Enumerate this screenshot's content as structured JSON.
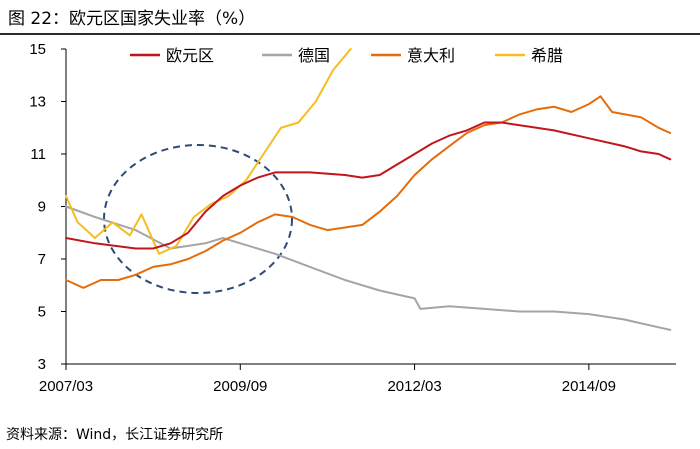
{
  "figure": {
    "title": "图 22：欧元区国家失业率（%）",
    "source": "资料来源：Wind，长江证券研究所"
  },
  "chart_data": {
    "type": "line",
    "title": "图 22：欧元区国家失业率（%）",
    "xlabel": "",
    "ylabel": "",
    "ylim": [
      3,
      15
    ],
    "yticks": [
      3,
      5,
      7,
      9,
      11,
      13,
      15
    ],
    "xrange": [
      "2007/03",
      "2015/12"
    ],
    "xticks": [
      "2007/03",
      "2009/09",
      "2012/03",
      "2014/09"
    ],
    "legend_position": "top",
    "grid": false,
    "colors": {
      "euro_area": "#c0161c",
      "germany": "#a5a5a5",
      "italy": "#e46c0a",
      "greece": "#f5bd1f",
      "ellipse": "#2e4a7a"
    },
    "series": [
      {
        "name": "欧元区",
        "key": "euro_area",
        "points": [
          [
            "2007/03",
            7.8
          ],
          [
            "2007/08",
            7.6
          ],
          [
            "2008/03",
            7.4
          ],
          [
            "2008/06",
            7.4
          ],
          [
            "2008/09",
            7.6
          ],
          [
            "2008/12",
            8.0
          ],
          [
            "2009/03",
            8.8
          ],
          [
            "2009/06",
            9.4
          ],
          [
            "2009/09",
            9.8
          ],
          [
            "2009/12",
            10.1
          ],
          [
            "2010/03",
            10.3
          ],
          [
            "2010/09",
            10.3
          ],
          [
            "2011/03",
            10.2
          ],
          [
            "2011/06",
            10.1
          ],
          [
            "2011/09",
            10.2
          ],
          [
            "2011/12",
            10.6
          ],
          [
            "2012/03",
            11.0
          ],
          [
            "2012/06",
            11.4
          ],
          [
            "2012/09",
            11.7
          ],
          [
            "2012/12",
            11.9
          ],
          [
            "2013/03",
            12.2
          ],
          [
            "2013/06",
            12.2
          ],
          [
            "2013/12",
            12.0
          ],
          [
            "2014/03",
            11.9
          ],
          [
            "2014/09",
            11.6
          ],
          [
            "2015/03",
            11.3
          ],
          [
            "2015/06",
            11.1
          ],
          [
            "2015/09",
            11.0
          ],
          [
            "2015/11",
            10.8
          ]
        ]
      },
      {
        "name": "德国",
        "key": "germany",
        "points": [
          [
            "2007/03",
            9.0
          ],
          [
            "2007/08",
            8.6
          ],
          [
            "2008/03",
            8.1
          ],
          [
            "2008/09",
            7.4
          ],
          [
            "2009/03",
            7.6
          ],
          [
            "2009/06",
            7.8
          ],
          [
            "2009/09",
            7.6
          ],
          [
            "2010/03",
            7.2
          ],
          [
            "2010/09",
            6.7
          ],
          [
            "2011/03",
            6.2
          ],
          [
            "2011/09",
            5.8
          ],
          [
            "2012/03",
            5.5
          ],
          [
            "2012/04",
            5.1
          ],
          [
            "2012/09",
            5.2
          ],
          [
            "2013/03",
            5.1
          ],
          [
            "2013/09",
            5.0
          ],
          [
            "2014/03",
            5.0
          ],
          [
            "2014/09",
            4.9
          ],
          [
            "2015/03",
            4.7
          ],
          [
            "2015/09",
            4.4
          ],
          [
            "2015/11",
            4.3
          ]
        ]
      },
      {
        "name": "意大利",
        "key": "italy",
        "points": [
          [
            "2007/03",
            6.2
          ],
          [
            "2007/06",
            5.9
          ],
          [
            "2007/09",
            6.2
          ],
          [
            "2007/12",
            6.2
          ],
          [
            "2008/03",
            6.4
          ],
          [
            "2008/06",
            6.7
          ],
          [
            "2008/09",
            6.8
          ],
          [
            "2008/12",
            7.0
          ],
          [
            "2009/03",
            7.3
          ],
          [
            "2009/06",
            7.7
          ],
          [
            "2009/09",
            8.0
          ],
          [
            "2009/12",
            8.4
          ],
          [
            "2010/03",
            8.7
          ],
          [
            "2010/06",
            8.6
          ],
          [
            "2010/09",
            8.3
          ],
          [
            "2010/12",
            8.1
          ],
          [
            "2011/03",
            8.2
          ],
          [
            "2011/06",
            8.3
          ],
          [
            "2011/09",
            8.8
          ],
          [
            "2011/12",
            9.4
          ],
          [
            "2012/03",
            10.2
          ],
          [
            "2012/06",
            10.8
          ],
          [
            "2012/09",
            11.3
          ],
          [
            "2012/12",
            11.8
          ],
          [
            "2013/03",
            12.1
          ],
          [
            "2013/06",
            12.2
          ],
          [
            "2013/09",
            12.5
          ],
          [
            "2013/12",
            12.7
          ],
          [
            "2014/03",
            12.8
          ],
          [
            "2014/06",
            12.6
          ],
          [
            "2014/09",
            12.9
          ],
          [
            "2014/11",
            13.2
          ],
          [
            "2015/01",
            12.6
          ],
          [
            "2015/06",
            12.4
          ],
          [
            "2015/09",
            12.0
          ],
          [
            "2015/11",
            11.8
          ]
        ]
      },
      {
        "name": "希腊",
        "key": "greece",
        "points": [
          [
            "2007/03",
            9.4
          ],
          [
            "2007/05",
            8.4
          ],
          [
            "2007/08",
            7.8
          ],
          [
            "2007/11",
            8.4
          ],
          [
            "2008/02",
            7.9
          ],
          [
            "2008/04",
            8.7
          ],
          [
            "2008/07",
            7.2
          ],
          [
            "2008/10",
            7.5
          ],
          [
            "2009/01",
            8.6
          ],
          [
            "2009/04",
            9.1
          ],
          [
            "2009/07",
            9.4
          ],
          [
            "2009/10",
            10.0
          ],
          [
            "2010/01",
            11.0
          ],
          [
            "2010/04",
            12.0
          ],
          [
            "2010/07",
            12.2
          ],
          [
            "2010/10",
            13.0
          ],
          [
            "2011/01",
            14.2
          ],
          [
            "2011/04",
            15.0
          ]
        ]
      }
    ],
    "annotations": [
      "dashed ellipse marking the 2008–2009 crisis period"
    ]
  }
}
